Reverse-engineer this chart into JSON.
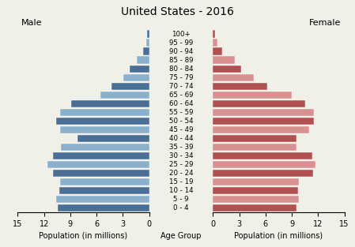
{
  "title": "United States - 2016",
  "age_groups": [
    "0 - 4",
    "5 - 9",
    "10 - 14",
    "15 - 19",
    "20 - 24",
    "25 - 29",
    "30 - 34",
    "35 - 39",
    "40 - 44",
    "45 - 49",
    "50 - 54",
    "55 - 59",
    "60 - 64",
    "65 - 69",
    "70 - 74",
    "75 - 79",
    "80 - 84",
    "85 - 89",
    "90 - 94",
    "95 - 99",
    "100+"
  ],
  "male": [
    10.4,
    10.6,
    10.3,
    10.2,
    11.0,
    11.6,
    11.0,
    10.1,
    8.2,
    10.2,
    10.6,
    10.2,
    8.9,
    5.6,
    4.3,
    2.95,
    2.2,
    1.4,
    0.72,
    0.35,
    0.19
  ],
  "female": [
    9.5,
    9.8,
    9.7,
    9.8,
    11.4,
    11.7,
    11.3,
    9.5,
    9.5,
    11.0,
    11.5,
    11.5,
    10.5,
    9.0,
    6.2,
    4.7,
    3.2,
    2.5,
    1.05,
    0.5,
    0.25
  ],
  "male_dark": "#4a6f96",
  "male_light": "#8ab0cc",
  "female_dark": "#b05050",
  "female_light": "#d89090",
  "xlim": 15,
  "xlabel_left": "Population (in millions)",
  "xlabel_center": "Age Group",
  "xlabel_right": "Population (in millions)",
  "label_left": "Male",
  "label_right": "Female",
  "background_color": "#f0f0e8",
  "title_fontsize": 10,
  "label_fontsize": 8,
  "tick_fontsize": 7,
  "age_fontsize": 6.2,
  "bar_height": 0.85
}
